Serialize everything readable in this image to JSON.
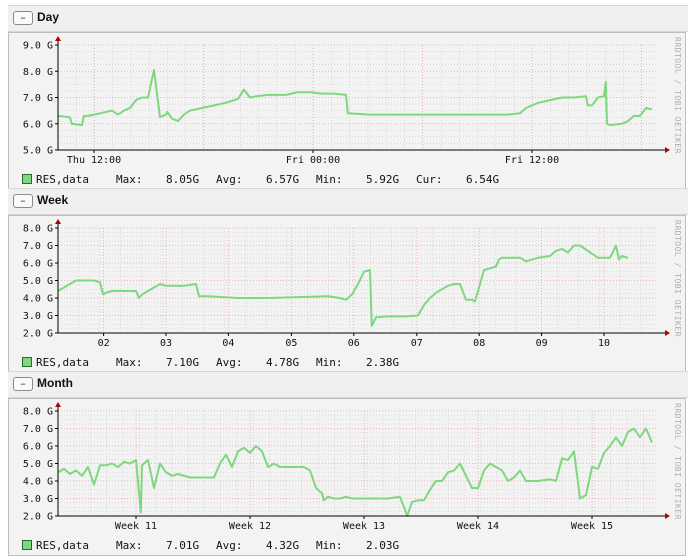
{
  "colors": {
    "line": "#7fd77f",
    "grid_major": "#f2a0a0",
    "grid_minor": "#c8c8c8",
    "axis": "#000000",
    "arrow": "#b00000",
    "frame_bg": "#f3f3f3"
  },
  "watermark": "RRDTOOL / TOBI OETIKER",
  "panels": [
    {
      "title": "Day",
      "toggle": "–",
      "legend": {
        "name": "RES,data",
        "max_label": "Max:",
        "max": "8.05G",
        "avg_label": "Avg:",
        "avg": "6.57G",
        "min_label": "Min:",
        "min": "5.92G",
        "cur_label": "Cur:",
        "cur": "6.54G"
      }
    },
    {
      "title": "Week",
      "toggle": "–",
      "legend": {
        "name": "RES,data",
        "max_label": "Max:",
        "max": "7.10G",
        "avg_label": "Avg:",
        "avg": "4.78G",
        "min_label": "Min:",
        "min": "2.38G"
      }
    },
    {
      "title": "Month",
      "toggle": "–",
      "legend": {
        "name": "RES,data",
        "max_label": "Max:",
        "max": "7.01G",
        "avg_label": "Avg:",
        "avg": "4.32G",
        "min_label": "Min:",
        "min": "2.03G"
      }
    }
  ],
  "chart_data": [
    {
      "type": "line",
      "title": "Day",
      "series_name": "RES,data",
      "x_range": [
        0,
        100
      ],
      "ylim": [
        5,
        9
      ],
      "yticks": [
        5,
        6,
        7,
        8,
        9
      ],
      "ytick_labels": [
        "5.0 G",
        "6.0 G",
        "7.0 G",
        "8.0 G",
        "9.0 G"
      ],
      "xticks": [
        {
          "x": 6,
          "label": "Thu 12:00"
        },
        {
          "x": 42.5,
          "label": "Fri 00:00"
        },
        {
          "x": 79,
          "label": "Fri 12:00"
        }
      ],
      "major_grid": [
        6,
        24.25,
        42.5,
        60.75,
        79,
        97.25
      ],
      "minor_grid_step": 3.04,
      "x": [
        0,
        2,
        2.3,
        4,
        4.3,
        5,
        6,
        7,
        9,
        10,
        11,
        12,
        13,
        14,
        15,
        16,
        17,
        17.5,
        18,
        18.2,
        19,
        20,
        21,
        22,
        23,
        24,
        26,
        28,
        30,
        31,
        32,
        33,
        35,
        38,
        40,
        42,
        44,
        46,
        48,
        48.3,
        52,
        58,
        65,
        70,
        75,
        77,
        78,
        80,
        82,
        84,
        86,
        88,
        88.3,
        89,
        90,
        91,
        91.3,
        91.5,
        92,
        94,
        95,
        96,
        97,
        98,
        99
      ],
      "y": [
        6.3,
        6.25,
        6.0,
        5.95,
        6.3,
        6.3,
        6.35,
        6.4,
        6.5,
        6.35,
        6.5,
        6.6,
        6.9,
        7.0,
        7.0,
        8.05,
        6.25,
        6.3,
        6.35,
        6.45,
        6.2,
        6.1,
        6.35,
        6.5,
        6.55,
        6.6,
        6.7,
        6.8,
        6.95,
        7.3,
        7.0,
        7.05,
        7.1,
        7.1,
        7.2,
        7.2,
        7.15,
        7.15,
        7.1,
        6.4,
        6.35,
        6.35,
        6.35,
        6.35,
        6.35,
        6.4,
        6.6,
        6.8,
        6.9,
        7.0,
        7.0,
        7.05,
        6.7,
        6.7,
        7.0,
        7.05,
        7.6,
        6.0,
        5.95,
        6.0,
        6.1,
        6.3,
        6.3,
        6.6,
        6.55
      ]
    },
    {
      "type": "line",
      "title": "Week",
      "series_name": "RES,data",
      "x_range": [
        0,
        100
      ],
      "ylim": [
        2,
        8
      ],
      "yticks": [
        2,
        3,
        4,
        5,
        6,
        7,
        8
      ],
      "ytick_labels": [
        "2.0 G",
        "3.0 G",
        "4.0 G",
        "5.0 G",
        "6.0 G",
        "7.0 G",
        "8.0 G"
      ],
      "xticks": [
        {
          "x": 7.6,
          "label": "02"
        },
        {
          "x": 18.0,
          "label": "03"
        },
        {
          "x": 28.4,
          "label": "04"
        },
        {
          "x": 38.9,
          "label": "05"
        },
        {
          "x": 49.3,
          "label": "06"
        },
        {
          "x": 59.8,
          "label": "07"
        },
        {
          "x": 70.2,
          "label": "08"
        },
        {
          "x": 80.6,
          "label": "09"
        },
        {
          "x": 91.0,
          "label": "10"
        }
      ],
      "major_grid": [
        7.6,
        18.0,
        28.4,
        38.9,
        49.3,
        59.8,
        70.2,
        80.6,
        91.0
      ],
      "minor_grid_step": 3.47,
      "x": [
        0,
        1,
        2,
        3,
        4,
        6,
        7,
        7.5,
        8,
        9,
        11,
        13,
        13.5,
        14,
        15,
        16,
        17,
        18,
        21,
        23,
        23.5,
        25,
        30,
        35,
        40,
        45,
        47,
        48,
        49,
        50,
        51,
        52,
        52.3,
        53,
        55,
        58,
        60,
        61,
        62,
        63,
        64,
        65,
        66,
        67,
        68,
        69,
        69.5,
        70,
        71,
        72,
        73,
        73.5,
        74,
        77,
        78,
        80,
        82,
        83,
        84,
        85,
        86,
        87,
        90,
        91,
        92,
        93,
        93.5,
        94,
        95
      ],
      "y": [
        4.4,
        4.6,
        4.8,
        5.0,
        5.0,
        5.0,
        4.9,
        4.2,
        4.3,
        4.4,
        4.4,
        4.4,
        4.0,
        4.2,
        4.4,
        4.6,
        4.8,
        4.7,
        4.7,
        4.8,
        4.1,
        4.1,
        4.0,
        4.0,
        4.05,
        4.1,
        4.0,
        3.9,
        4.2,
        4.8,
        5.5,
        5.6,
        2.4,
        2.9,
        2.95,
        2.95,
        3.0,
        3.6,
        4.0,
        4.3,
        4.5,
        4.7,
        4.8,
        4.8,
        3.9,
        3.9,
        3.8,
        4.4,
        5.6,
        5.7,
        5.8,
        6.2,
        6.3,
        6.3,
        6.1,
        6.3,
        6.4,
        6.7,
        6.8,
        6.6,
        7.0,
        7.0,
        6.3,
        6.3,
        6.3,
        7.0,
        6.2,
        6.4,
        6.3
      ]
    },
    {
      "type": "line",
      "title": "Month",
      "series_name": "RES,data",
      "x_range": [
        0,
        100
      ],
      "ylim": [
        2,
        8
      ],
      "yticks": [
        2,
        3,
        4,
        5,
        6,
        7,
        8
      ],
      "ytick_labels": [
        "2.0 G",
        "3.0 G",
        "4.0 G",
        "5.0 G",
        "6.0 G",
        "7.0 G",
        "8.0 G"
      ],
      "xticks": [
        {
          "x": 13.0,
          "label": "Week 11"
        },
        {
          "x": 32.0,
          "label": "Week 12"
        },
        {
          "x": 51.0,
          "label": "Week 13"
        },
        {
          "x": 70.0,
          "label": "Week 14"
        },
        {
          "x": 89.0,
          "label": "Week 15"
        }
      ],
      "major_grid": [
        13.0,
        32.0,
        51.0,
        70.0,
        89.0
      ],
      "minor_grid_step": 2.71,
      "x": [
        0,
        1,
        2,
        3,
        4,
        5,
        6,
        7,
        8,
        9,
        10,
        11,
        12,
        13,
        13.8,
        14,
        15,
        16,
        17,
        18,
        19,
        20,
        22,
        24,
        26,
        27,
        28,
        29,
        30,
        31,
        32,
        33,
        34,
        35,
        36,
        37,
        38,
        41,
        42,
        43,
        44,
        44.3,
        45,
        46,
        47,
        48,
        49,
        52,
        55,
        57,
        58,
        58.2,
        59,
        60,
        61,
        62,
        63,
        64,
        65,
        66,
        67,
        69,
        70,
        71,
        72,
        73,
        74,
        75,
        76,
        77,
        78,
        80,
        82,
        83,
        84,
        85,
        86,
        87,
        88,
        89,
        90,
        91,
        92,
        93,
        94,
        95,
        96,
        97,
        98,
        99
      ],
      "y": [
        4.5,
        4.7,
        4.4,
        4.6,
        4.3,
        4.8,
        3.8,
        4.9,
        4.9,
        5.0,
        4.8,
        5.1,
        5.0,
        5.2,
        2.2,
        4.9,
        5.2,
        3.6,
        5.0,
        4.5,
        4.3,
        4.4,
        4.2,
        4.2,
        4.2,
        5.0,
        5.5,
        4.8,
        5.7,
        5.9,
        5.6,
        6.0,
        5.7,
        4.8,
        5.0,
        4.8,
        4.8,
        4.8,
        4.6,
        3.6,
        3.3,
        2.9,
        3.1,
        3.0,
        3.0,
        3.1,
        3.0,
        3.0,
        3.0,
        3.1,
        2.2,
        2.0,
        2.8,
        2.9,
        2.9,
        3.5,
        4.0,
        4.0,
        4.5,
        4.6,
        5.0,
        3.6,
        3.6,
        4.6,
        5.0,
        4.8,
        4.6,
        4.0,
        4.2,
        4.6,
        4.0,
        4.0,
        4.1,
        4.0,
        5.3,
        5.2,
        5.7,
        3.0,
        3.2,
        4.8,
        4.7,
        5.6,
        6.0,
        6.5,
        6.0,
        6.8,
        7.0,
        6.5,
        7.0,
        6.2
      ]
    }
  ]
}
